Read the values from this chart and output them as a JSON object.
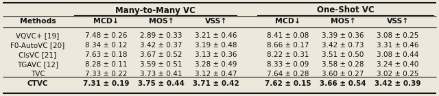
{
  "col_groups": [
    {
      "label": "Many-to-Many VC",
      "span": [
        1,
        3
      ]
    },
    {
      "label": "One-Shot VC",
      "span": [
        4,
        6
      ]
    }
  ],
  "sub_headers": [
    "MCD↓",
    "MOS↑",
    "VSS↑",
    "MCD↓",
    "MOS↑",
    "VSS↑"
  ],
  "methods": [
    "VQVC+ [19]",
    "F0-AutoVC [20]",
    "ClsVC [21]",
    "TGAVC [12]",
    "TVC",
    "CTVC"
  ],
  "bold_rows": [
    5
  ],
  "data": [
    [
      "7.48 ± 0.26",
      "2.89 ± 0.33",
      "3.21 ± 0.46",
      "8.41 ± 0.08",
      "3.39 ± 0.36",
      "3.08 ± 0.25"
    ],
    [
      "8.34 ± 0.12",
      "3.42 ± 0.37",
      "3.19 ± 0.48",
      "8.66 ± 0.17",
      "3.42 ± 0.73",
      "3.31 ± 0.46"
    ],
    [
      "7.63 ± 0.18",
      "3.67 ± 0.52",
      "3.13 ± 0.36",
      "8.22 ± 0.31",
      "3.51 ± 0.50",
      "3.08 ± 0.44"
    ],
    [
      "8.28 ± 0.11",
      "3.59 ± 0.51",
      "3.28 ± 0.49",
      "8.33 ± 0.09",
      "3.58 ± 0.28",
      "3.24 ± 0.40"
    ],
    [
      "7.33 ± 0.22",
      "3.73 ± 0.41",
      "3.12 ± 0.47",
      "7.64 ± 0.28",
      "3.60 ± 0.27",
      "3.02 ± 0.25"
    ],
    [
      "7.31 ± 0.19",
      "3.75 ± 0.44",
      "3.71 ± 0.42",
      "7.62 ± 0.15",
      "3.66 ± 0.54",
      "3.42 ± 0.39"
    ]
  ],
  "separator_after_row": 3,
  "bg_color": "#ede8dc",
  "text_color": "#111111",
  "figsize": [
    6.4,
    1.4
  ],
  "dpi": 100
}
